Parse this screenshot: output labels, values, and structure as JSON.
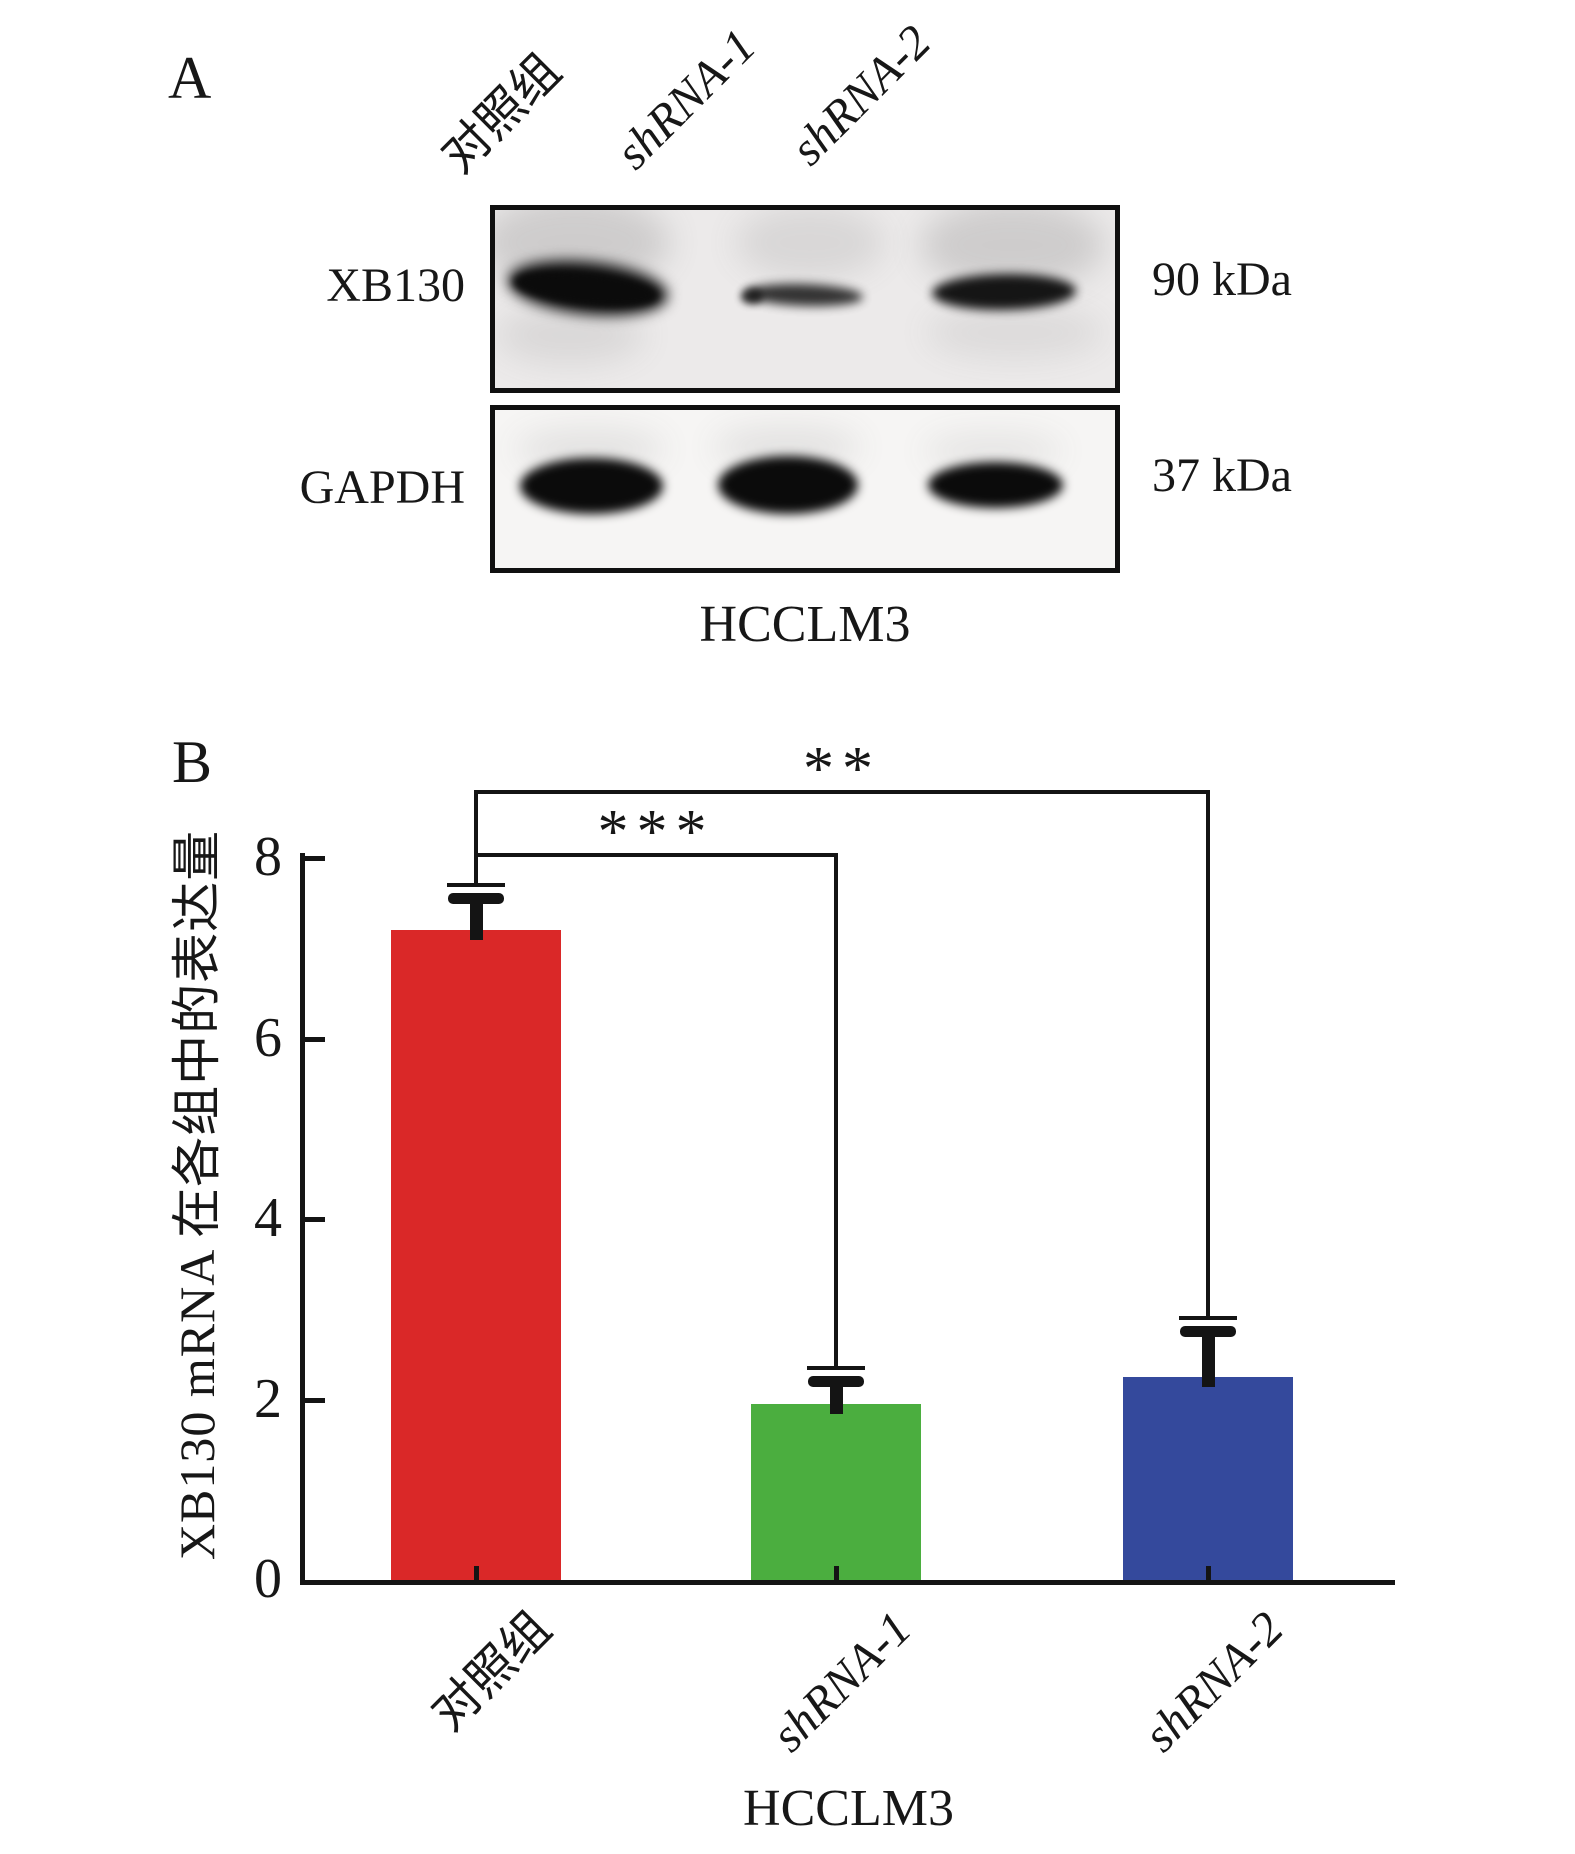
{
  "panel_a": {
    "label": "A",
    "lane_labels": [
      "对照组",
      "shRNA-1",
      "shRNA-2"
    ],
    "blots": [
      {
        "protein": "XB130",
        "weight_label": "90 kDa",
        "bands": [
          "strong",
          "weak",
          "medium"
        ]
      },
      {
        "protein": "GAPDH",
        "weight_label": "37 kDa",
        "bands": [
          "strong",
          "strong",
          "strong"
        ]
      }
    ],
    "cell_line": "HCCLM3"
  },
  "panel_b": {
    "label": "B"
  },
  "chart_data": {
    "type": "bar",
    "title": "",
    "categories": [
      "对照组",
      "shRNA-1",
      "shRNA-2"
    ],
    "values": [
      7.2,
      1.95,
      2.25
    ],
    "errors_upper": [
      0.5,
      0.4,
      0.65
    ],
    "bar_colors": [
      "#da2828",
      "#4bae3f",
      "#34499c"
    ],
    "ylabel": "XB130 mRNA 在各组中的表达量",
    "xlabel": "HCCLM3",
    "ylim": [
      0,
      8
    ],
    "yticks": [
      0,
      2,
      4,
      6,
      8
    ],
    "grid": false,
    "legend": "none",
    "significance_brackets": [
      {
        "from": 0,
        "to": 1,
        "label": "***",
        "y": 8.05
      },
      {
        "from": 0,
        "to": 2,
        "label": "**",
        "y": 8.75
      }
    ]
  }
}
